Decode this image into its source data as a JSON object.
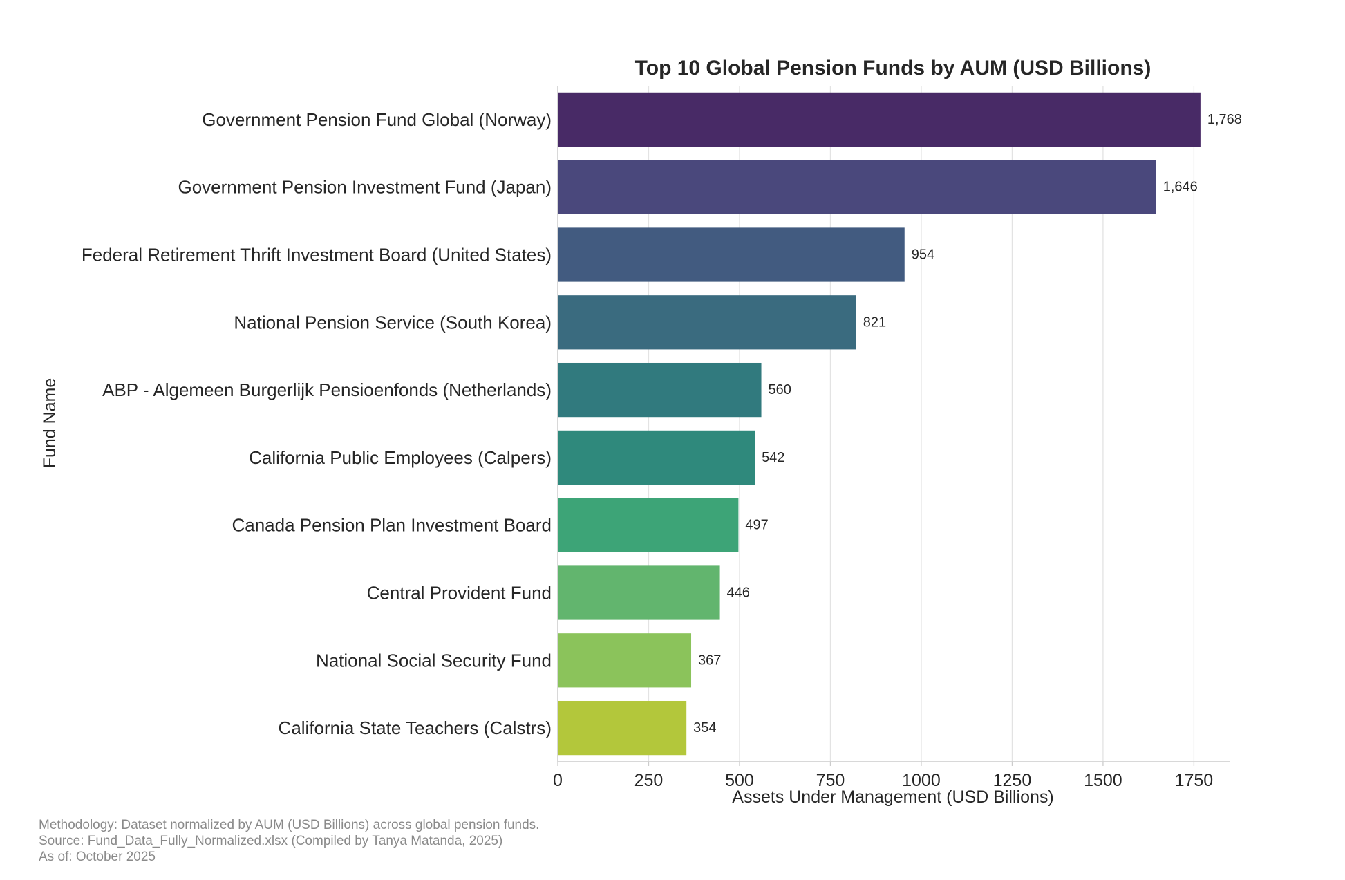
{
  "chart_data": {
    "type": "bar",
    "orientation": "horizontal",
    "title": "Top 10 Global Pension Funds by AUM (USD Billions)",
    "xlabel": "Assets Under Management (USD Billions)",
    "ylabel": "Fund Name",
    "xlim": [
      0,
      1850
    ],
    "xticks": [
      0,
      250,
      500,
      750,
      1000,
      1250,
      1500,
      1750
    ],
    "grid": "vertical",
    "legend": "none",
    "categories": [
      "Government Pension Fund Global (Norway)",
      "Government Pension Investment Fund (Japan)",
      "Federal Retirement Thrift Investment Board (United States)",
      "National Pension Service (South Korea)",
      "ABP - Algemeen Burgerlijk Pensioenfonds (Netherlands)",
      "California Public Employees (Calpers)",
      "Canada Pension Plan Investment Board",
      "Central Provident Fund",
      "National Social Security Fund",
      "California State Teachers (Calstrs)"
    ],
    "values": [
      1768,
      1646,
      954,
      821,
      560,
      542,
      497,
      446,
      367,
      354
    ],
    "value_labels": [
      "1,768",
      "1,646",
      "954",
      "821",
      "560",
      "542",
      "497",
      "446",
      "367",
      "354"
    ],
    "colors": [
      "#482a66",
      "#4a487c",
      "#425b80",
      "#3a6b7f",
      "#317a7e",
      "#2f897c",
      "#3da477",
      "#62b56e",
      "#8bc35b",
      "#b3c73b"
    ]
  },
  "footnotes": {
    "methodology": "Methodology: Dataset normalized by AUM (USD Billions) across global pension funds.",
    "source": "Source: Fund_Data_Fully_Normalized.xlsx (Compiled by Tanya Matanda, 2025)",
    "as_of": "As of: October 2025"
  }
}
